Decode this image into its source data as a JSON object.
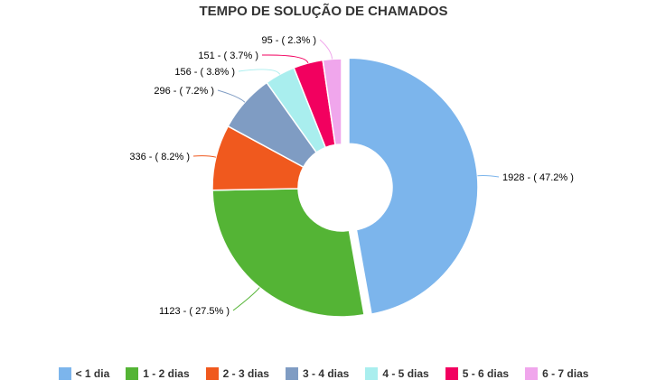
{
  "chart_data": {
    "type": "pie",
    "title": "TEMPO DE SOLUÇÃO DE CHAMADOS",
    "categories": [
      "< 1 dia",
      "1 - 2 dias",
      "2 - 3 dias",
      "3 - 4 dias",
      "4 - 5 dias",
      "5 - 6 dias",
      "6 - 7 dias"
    ],
    "values": [
      1928,
      1123,
      336,
      296,
      156,
      151,
      95
    ],
    "data_labels": [
      "1928 - ( 47.2% )",
      "1123 - ( 27.5% )",
      "336 - ( 8.2% )",
      "296 - ( 7.2% )",
      "156 - ( 3.8% )",
      "151 - ( 3.7% )",
      "95 - ( 2.3% )"
    ],
    "colors": [
      "#7cb5ec",
      "#54b435",
      "#f0591e",
      "#7f9cc3",
      "#a9eeee",
      "#f2005f",
      "#f0a6ec"
    ],
    "legend_position": "bottom",
    "donut": true
  }
}
